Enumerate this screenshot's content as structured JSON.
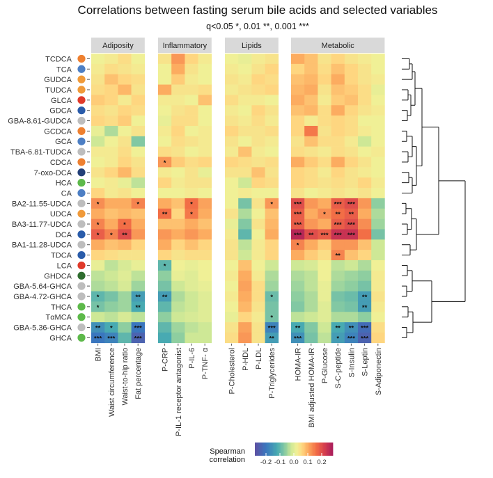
{
  "chart_data": {
    "type": "heatmap",
    "title": "Correlations between fasting serum bile acids and selected variables",
    "subtitle": "q<0.05 *, 0.01 **, 0.001 ***",
    "groups": [
      {
        "name": "Adiposity",
        "variables": [
          "BMI",
          "Waist circumference",
          "Waist-to-hip ratio",
          "Fat percentage"
        ]
      },
      {
        "name": "Inflammatory",
        "variables": [
          "P-CRP",
          "P-IL-1 receptor antagonist",
          "P-IL-6",
          "P-TNF- α"
        ]
      },
      {
        "name": "Lipids",
        "variables": [
          "P-Cholesterol",
          "P-HDL",
          "P-LDL",
          "P-Triglycerides"
        ]
      },
      {
        "name": "Metabolic",
        "variables": [
          "HOMA-IR",
          "BMI adjusted HOMA-IR",
          "P-Glucose",
          "S-C-peptide",
          "S-Insulin",
          "S-Leptin",
          "S-Adiponectin"
        ]
      }
    ],
    "rows": [
      {
        "name": "TCDCA",
        "color": "#ee8030"
      },
      {
        "name": "TCA",
        "color": "#4d7fc4"
      },
      {
        "name": "GUDCA",
        "color": "#f09a3a"
      },
      {
        "name": "TUDCA",
        "color": "#f09a3a"
      },
      {
        "name": "GLCA",
        "color": "#e03a2a"
      },
      {
        "name": "GDCA",
        "color": "#2a5caa"
      },
      {
        "name": "GBA-8.61-GUDCA",
        "color": "#bdbdbd"
      },
      {
        "name": "GCDCA",
        "color": "#ee8030"
      },
      {
        "name": "GCA",
        "color": "#4d7fc4"
      },
      {
        "name": "TBA-6.81-TUDCA",
        "color": "#bdbdbd"
      },
      {
        "name": "CDCA",
        "color": "#ee8030"
      },
      {
        "name": "7-oxo-DCA",
        "color": "#233f78"
      },
      {
        "name": "HCA",
        "color": "#5db94a"
      },
      {
        "name": "CA",
        "color": "#4d7fc4"
      },
      {
        "name": "BA2-11.55-UDCA",
        "color": "#bdbdbd"
      },
      {
        "name": "UDCA",
        "color": "#f09a3a"
      },
      {
        "name": "BA3-11.77-UDCA",
        "color": "#bdbdbd"
      },
      {
        "name": "DCA",
        "color": "#2a5caa"
      },
      {
        "name": "BA1-11.28-UDCA",
        "color": "#bdbdbd"
      },
      {
        "name": "TDCA",
        "color": "#2a5caa"
      },
      {
        "name": "LCA",
        "color": "#e03a2a"
      },
      {
        "name": "GHDCA",
        "color": "#2f6d2f"
      },
      {
        "name": "GBA-5.64-GHCA",
        "color": "#bdbdbd"
      },
      {
        "name": "GBA-4.72-GHCA",
        "color": "#bdbdbd"
      },
      {
        "name": "THCA",
        "color": "#5db94a"
      },
      {
        "name": "TαMCA",
        "color": "#5db94a"
      },
      {
        "name": "GBA-5.36-GHCA",
        "color": "#bdbdbd"
      },
      {
        "name": "GHCA",
        "color": "#5db94a"
      }
    ],
    "values": [
      [
        0.02,
        0.03,
        0.05,
        0.02,
        0.04,
        0.12,
        0.06,
        0.03,
        0.02,
        0.01,
        0.03,
        0.04,
        0.1,
        0.08,
        0.04,
        0.06,
        0.04,
        0.03,
        0.02
      ],
      [
        0.03,
        0.05,
        0.04,
        0.03,
        0.02,
        0.1,
        0.04,
        0.02,
        0.03,
        0.02,
        0.04,
        0.06,
        0.06,
        0.08,
        0.05,
        0.08,
        0.06,
        0.04,
        0.02
      ],
      [
        0.04,
        0.08,
        0.06,
        0.05,
        0.02,
        0.07,
        0.03,
        0.02,
        0.04,
        0.03,
        0.06,
        0.05,
        0.08,
        0.09,
        0.06,
        0.1,
        0.06,
        0.04,
        0.03
      ],
      [
        0.05,
        0.06,
        0.09,
        0.04,
        0.1,
        0.04,
        0.04,
        0.05,
        0.03,
        0.04,
        0.05,
        0.06,
        0.09,
        0.1,
        0.04,
        0.08,
        0.07,
        0.05,
        0.01
      ],
      [
        0.07,
        0.06,
        0.03,
        0.06,
        0.03,
        0.03,
        0.02,
        0.08,
        0.05,
        0.03,
        0.03,
        0.02,
        0.1,
        0.08,
        0.03,
        0.07,
        0.08,
        0.05,
        0.02
      ],
      [
        0.05,
        0.04,
        0.06,
        0.05,
        0.02,
        0.04,
        0.05,
        0.02,
        0.03,
        0.02,
        0.06,
        0.04,
        0.08,
        0.09,
        0.05,
        0.1,
        0.06,
        0.04,
        0.03
      ],
      [
        0.06,
        0.05,
        0.07,
        0.02,
        0.01,
        0.05,
        0.05,
        0.02,
        0.04,
        0.03,
        0.05,
        0.03,
        0.06,
        0.03,
        0.05,
        0.06,
        0.05,
        0.02,
        0.02
      ],
      [
        0.01,
        -0.04,
        0.02,
        0.04,
        0.03,
        0.06,
        0.02,
        0.03,
        0.06,
        0.04,
        0.04,
        0.05,
        0.06,
        0.15,
        0.04,
        0.06,
        0.05,
        0.03,
        0.02
      ],
      [
        -0.02,
        0.02,
        0.04,
        -0.07,
        0.02,
        0.05,
        0.04,
        0.03,
        0.04,
        0.02,
        0.04,
        0.03,
        0.04,
        0.08,
        0.05,
        0.05,
        0.03,
        -0.02,
        0.02
      ],
      [
        0.03,
        0.03,
        0.05,
        0.02,
        0.05,
        0.04,
        0.02,
        0.03,
        0.03,
        0.08,
        0.03,
        0.02,
        0.05,
        0.04,
        0.03,
        0.05,
        0.04,
        0.02,
        0.03
      ],
      [
        0.02,
        0.03,
        0.06,
        0.04,
        0.12,
        0.07,
        0.05,
        0.06,
        0.06,
        0.05,
        0.04,
        0.05,
        0.1,
        0.07,
        0.05,
        0.1,
        0.06,
        0.04,
        0.02
      ],
      [
        0.04,
        0.06,
        0.09,
        0.05,
        0.03,
        0.02,
        0.04,
        0.01,
        0.04,
        0.04,
        0.08,
        0.04,
        0.06,
        0.05,
        0.03,
        0.06,
        0.04,
        0.03,
        0.02
      ],
      [
        0.02,
        0.03,
        0.01,
        -0.03,
        0.06,
        0.03,
        0.04,
        0.04,
        0.02,
        -0.02,
        0.06,
        0.05,
        0.06,
        0.05,
        0.04,
        0.05,
        0.04,
        0.06,
        0.03
      ],
      [
        0.06,
        0.03,
        0.04,
        0.02,
        0.02,
        0.02,
        0.03,
        0.02,
        0.02,
        0.03,
        0.02,
        0.02,
        0.04,
        0.02,
        0.03,
        0.04,
        0.03,
        0.04,
        0.02
      ],
      [
        0.13,
        0.1,
        0.1,
        0.14,
        0.1,
        0.08,
        0.16,
        0.11,
        0.02,
        -0.08,
        0.04,
        0.12,
        0.2,
        0.12,
        0.1,
        0.18,
        0.2,
        0.12,
        -0.06
      ],
      [
        0.1,
        0.08,
        0.09,
        0.08,
        0.16,
        0.06,
        0.15,
        0.1,
        0.04,
        -0.04,
        0.02,
        0.08,
        0.18,
        0.1,
        0.13,
        0.16,
        0.18,
        0.1,
        -0.04
      ],
      [
        0.14,
        0.1,
        0.16,
        0.1,
        0.08,
        0.08,
        0.1,
        0.08,
        0.01,
        -0.07,
        0.04,
        0.09,
        0.18,
        0.12,
        0.1,
        0.18,
        0.2,
        0.13,
        -0.05
      ],
      [
        0.18,
        0.14,
        0.2,
        0.12,
        0.12,
        0.1,
        0.12,
        0.1,
        0.03,
        -0.1,
        0.02,
        0.1,
        0.26,
        0.2,
        0.18,
        0.24,
        0.24,
        0.16,
        -0.08
      ],
      [
        0.1,
        0.08,
        0.09,
        0.06,
        0.1,
        0.06,
        0.08,
        0.06,
        0.04,
        -0.03,
        0.03,
        0.06,
        0.14,
        0.1,
        0.07,
        0.12,
        0.12,
        0.08,
        -0.02
      ],
      [
        0.06,
        0.05,
        0.04,
        0.04,
        0.06,
        0.04,
        0.05,
        0.05,
        0.04,
        -0.02,
        0.03,
        0.06,
        0.1,
        0.07,
        0.05,
        0.14,
        0.08,
        0.06,
        -0.02
      ],
      [
        0.01,
        -0.03,
        -0.01,
        0.01,
        -0.1,
        0.02,
        0.01,
        0.02,
        0.02,
        0.08,
        0.02,
        -0.02,
        -0.02,
        -0.01,
        0.02,
        -0.03,
        -0.02,
        -0.04,
        0.02
      ],
      [
        -0.03,
        -0.02,
        0.0,
        -0.03,
        -0.06,
        0.01,
        0.0,
        0.02,
        0.03,
        0.1,
        0.03,
        -0.04,
        -0.04,
        -0.03,
        0.02,
        -0.04,
        -0.05,
        -0.06,
        0.03
      ],
      [
        -0.04,
        -0.03,
        -0.01,
        -0.05,
        -0.08,
        -0.02,
        0.0,
        0.01,
        0.02,
        0.11,
        0.05,
        -0.05,
        -0.05,
        -0.03,
        0.01,
        -0.05,
        -0.06,
        -0.08,
        0.03
      ],
      [
        -0.1,
        -0.08,
        -0.05,
        -0.14,
        -0.14,
        -0.04,
        -0.02,
        0.0,
        0.03,
        0.1,
        0.05,
        -0.09,
        -0.06,
        -0.04,
        0.01,
        -0.08,
        -0.09,
        -0.14,
        0.04
      ],
      [
        -0.08,
        -0.06,
        -0.05,
        -0.12,
        -0.1,
        -0.03,
        -0.02,
        0.0,
        0.02,
        0.09,
        0.04,
        -0.08,
        -0.07,
        -0.04,
        0.0,
        -0.07,
        -0.08,
        -0.14,
        0.03
      ],
      [
        -0.02,
        -0.03,
        -0.01,
        -0.03,
        -0.06,
        -0.02,
        -0.01,
        0.0,
        0.01,
        0.06,
        0.03,
        -0.08,
        -0.03,
        -0.02,
        0.0,
        -0.04,
        -0.04,
        -0.06,
        0.02
      ],
      [
        -0.16,
        -0.12,
        -0.06,
        -0.2,
        -0.1,
        -0.05,
        -0.03,
        -0.02,
        0.04,
        0.11,
        0.04,
        -0.18,
        -0.12,
        -0.07,
        -0.02,
        -0.12,
        -0.16,
        -0.22,
        0.05
      ],
      [
        -0.2,
        -0.18,
        -0.1,
        -0.24,
        -0.12,
        -0.06,
        -0.02,
        -0.02,
        0.05,
        0.12,
        0.04,
        -0.14,
        -0.16,
        -0.08,
        -0.03,
        -0.14,
        -0.18,
        -0.24,
        0.06
      ]
    ],
    "significance": [
      [
        "",
        "",
        "",
        "",
        "",
        "",
        "",
        "",
        "",
        "",
        "",
        "",
        "",
        "",
        "",
        "",
        "",
        "",
        ""
      ],
      [
        "",
        "",
        "",
        "",
        "",
        "",
        "",
        "",
        "",
        "",
        "",
        "",
        "",
        "",
        "",
        "",
        "",
        "",
        ""
      ],
      [
        "",
        "",
        "",
        "",
        "",
        "",
        "",
        "",
        "",
        "",
        "",
        "",
        "",
        "",
        "",
        "",
        "",
        "",
        ""
      ],
      [
        "",
        "",
        "",
        "",
        "",
        "",
        "",
        "",
        "",
        "",
        "",
        "",
        "",
        "",
        "",
        "",
        "",
        "",
        ""
      ],
      [
        "",
        "",
        "",
        "",
        "",
        "",
        "",
        "",
        "",
        "",
        "",
        "",
        "",
        "",
        "",
        "",
        "",
        "",
        ""
      ],
      [
        "",
        "",
        "",
        "",
        "",
        "",
        "",
        "",
        "",
        "",
        "",
        "",
        "",
        "",
        "",
        "",
        "",
        "",
        ""
      ],
      [
        "",
        "",
        "",
        "",
        "",
        "",
        "",
        "",
        "",
        "",
        "",
        "",
        "",
        "",
        "",
        "",
        "",
        "",
        ""
      ],
      [
        "",
        "",
        "",
        "",
        "",
        "",
        "",
        "",
        "",
        "",
        "",
        "",
        "",
        "",
        "",
        "",
        "",
        "",
        ""
      ],
      [
        "",
        "",
        "",
        "",
        "",
        "",
        "",
        "",
        "",
        "",
        "",
        "",
        "",
        "",
        "",
        "",
        "",
        "",
        ""
      ],
      [
        "",
        "",
        "",
        "",
        "",
        "",
        "",
        "",
        "",
        "",
        "",
        "",
        "",
        "",
        "",
        "",
        "",
        "",
        ""
      ],
      [
        "",
        "",
        "",
        "",
        "*",
        "",
        "",
        "",
        "",
        "",
        "",
        "",
        "",
        "",
        "",
        "",
        "",
        "",
        ""
      ],
      [
        "",
        "",
        "",
        "",
        "",
        "",
        "",
        "",
        "",
        "",
        "",
        "",
        "",
        "",
        "",
        "",
        "",
        "",
        ""
      ],
      [
        "",
        "",
        "",
        "",
        "",
        "",
        "",
        "",
        "",
        "",
        "",
        "",
        "",
        "",
        "",
        "",
        "",
        "",
        ""
      ],
      [
        "",
        "",
        "",
        "",
        "",
        "",
        "",
        "",
        "",
        "",
        "",
        "",
        "",
        "",
        "",
        "",
        "",
        "",
        ""
      ],
      [
        "*",
        "",
        "",
        "*",
        "",
        "",
        "*",
        "",
        "",
        "",
        "",
        "*",
        "***",
        "",
        "",
        "***",
        "***",
        "",
        ""
      ],
      [
        "",
        "",
        "",
        "",
        "**",
        "",
        "*",
        "",
        "",
        "",
        "",
        "",
        "***",
        "",
        "*",
        "**",
        "**",
        "",
        ""
      ],
      [
        "*",
        "",
        "*",
        "",
        "",
        "",
        "",
        "",
        "",
        "",
        "",
        "",
        "***",
        "",
        "",
        "***",
        "***",
        "",
        ""
      ],
      [
        "*",
        "*",
        "**",
        "",
        "",
        "",
        "",
        "",
        "",
        "",
        "",
        "",
        "***",
        "**",
        "***",
        "***",
        "***",
        "",
        ""
      ],
      [
        "",
        "",
        "",
        "",
        "",
        "",
        "",
        "",
        "",
        "",
        "",
        "",
        "*",
        "",
        "",
        "",
        "",
        "",
        ""
      ],
      [
        "",
        "",
        "",
        "",
        "",
        "",
        "",
        "",
        "",
        "",
        "",
        "",
        "",
        "",
        "",
        "**",
        "",
        "",
        ""
      ],
      [
        "",
        "",
        "",
        "",
        "*",
        "",
        "",
        "",
        "",
        "",
        "",
        "",
        "",
        "",
        "",
        "",
        "",
        "",
        ""
      ],
      [
        "",
        "",
        "",
        "",
        "",
        "",
        "",
        "",
        "",
        "",
        "",
        "",
        "",
        "",
        "",
        "",
        "",
        "",
        ""
      ],
      [
        "",
        "",
        "",
        "",
        "",
        "",
        "",
        "",
        "",
        "",
        "",
        "",
        "",
        "",
        "",
        "",
        "",
        "",
        ""
      ],
      [
        "*",
        "",
        "",
        "**",
        "**",
        "",
        "",
        "",
        "",
        "",
        "",
        "*",
        "",
        "",
        "",
        "",
        "",
        "**",
        ""
      ],
      [
        "*",
        "",
        "",
        "**",
        "",
        "",
        "",
        "",
        "",
        "",
        "",
        "",
        "",
        "",
        "",
        "",
        "",
        "**",
        ""
      ],
      [
        "",
        "",
        "",
        "",
        "",
        "",
        "",
        "",
        "",
        "",
        "",
        "*",
        "",
        "",
        "",
        "",
        "",
        "",
        ""
      ],
      [
        "**",
        "*",
        "",
        "***",
        "",
        "",
        "",
        "",
        "",
        "",
        "",
        "***",
        "**",
        "",
        "",
        "**",
        "**",
        "***",
        ""
      ],
      [
        "***",
        "***",
        "",
        "***",
        "",
        "",
        "",
        "",
        "",
        "",
        "",
        "**",
        "***",
        "",
        "",
        "*",
        "***",
        "***",
        ""
      ]
    ],
    "legend": {
      "title": "Spearman correlation",
      "title_lines": [
        "Spearman",
        "correlation"
      ],
      "tick_labels": [
        "-0.2",
        "-0.1",
        "0.0",
        "0.1",
        "0.2"
      ],
      "ticks": [
        -0.2,
        -0.1,
        0.0,
        0.1,
        0.2
      ],
      "range": [
        -0.28,
        0.28
      ],
      "placement": "bottom"
    },
    "dendrogram": "right"
  }
}
